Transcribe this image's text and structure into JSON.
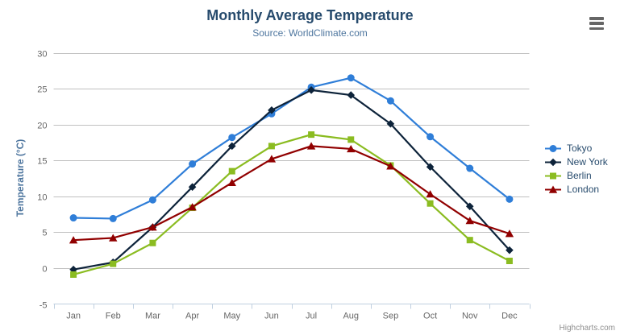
{
  "chart_data": {
    "type": "line",
    "title": "Monthly Average Temperature",
    "subtitle": "Source: WorldClimate.com",
    "categories": [
      "Jan",
      "Feb",
      "Mar",
      "Apr",
      "May",
      "Jun",
      "Jul",
      "Aug",
      "Sep",
      "Oct",
      "Nov",
      "Dec"
    ],
    "xlabel": "",
    "ylabel": "Temperature (°C)",
    "ylim": [
      -5,
      30
    ],
    "yticks": [
      -5,
      0,
      5,
      10,
      15,
      20,
      25,
      30
    ],
    "grid": true,
    "legend_position": "right",
    "series": [
      {
        "name": "Tokyo",
        "color": "#2f7ed8",
        "marker": "circle",
        "values": [
          7.0,
          6.9,
          9.5,
          14.5,
          18.2,
          21.5,
          25.2,
          26.5,
          23.3,
          18.3,
          13.9,
          9.6
        ]
      },
      {
        "name": "New York",
        "color": "#0d233a",
        "marker": "diamond",
        "values": [
          -0.2,
          0.8,
          5.7,
          11.3,
          17.0,
          22.0,
          24.8,
          24.1,
          20.1,
          14.1,
          8.6,
          2.5
        ]
      },
      {
        "name": "Berlin",
        "color": "#8bbc21",
        "marker": "square",
        "values": [
          -0.9,
          0.6,
          3.5,
          8.4,
          13.5,
          17.0,
          18.6,
          17.9,
          14.3,
          9.0,
          3.9,
          1.0
        ]
      },
      {
        "name": "London",
        "color": "#910000",
        "marker": "triangle",
        "values": [
          3.9,
          4.2,
          5.7,
          8.5,
          11.9,
          15.2,
          17.0,
          16.6,
          14.2,
          10.3,
          6.6,
          4.8
        ]
      }
    ],
    "colors": {
      "grid": "#c0c0c0",
      "axis_line": "#c0d0e0",
      "tick_label": "#666666",
      "title_text": "#274b6d",
      "subtitle_text": "#4d759e",
      "legend_text": "#274b6d",
      "credits_text": "#909090",
      "menu_icon": "#666666"
    }
  },
  "credits_label": "Highcharts.com",
  "export_menu": {
    "icon": "hamburger-icon"
  }
}
